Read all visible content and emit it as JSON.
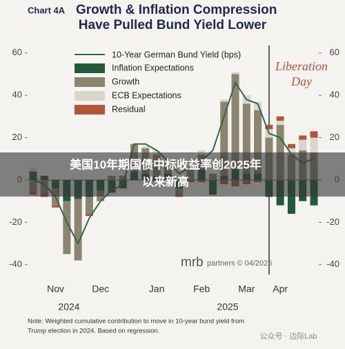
{
  "chart_data": {
    "type": "stacked_bar_line",
    "title_prefix": "Chart 4A",
    "title": [
      "Growth & Inflation Compression",
      "Have Pulled Bund Yield Lower"
    ],
    "categories": [
      null,
      null,
      "Nov",
      null,
      null,
      null,
      "Dec",
      null,
      null,
      null,
      null,
      "Jan",
      null,
      null,
      null,
      "Feb",
      null,
      null,
      null,
      "Mar",
      null,
      null,
      "Apr",
      null,
      null,
      null
    ],
    "year_labels": [
      "2024",
      "2025"
    ],
    "series": [
      {
        "name": "Inflation Expectations",
        "color": "#1f5a3b",
        "values": [
          4,
          2,
          -4,
          -10,
          -9,
          -8,
          -5,
          -6,
          -4,
          4,
          3,
          2,
          3,
          -4,
          0,
          5,
          -7,
          2,
          5,
          3,
          3,
          -8,
          -12,
          -16,
          -10,
          -12
        ]
      },
      {
        "name": "Growth",
        "color": "#8b846f",
        "values": [
          -5,
          -6,
          -8,
          -25,
          -29,
          -8,
          -5,
          2,
          2,
          13,
          12,
          10,
          5,
          -3,
          5,
          7,
          3,
          35,
          45,
          33,
          30,
          20,
          26,
          12,
          14,
          13
        ]
      },
      {
        "name": "ECB Expectations",
        "color": "#d8d5ca",
        "values": [
          2,
          0,
          0,
          0,
          0,
          0,
          0,
          0,
          0,
          0,
          1,
          2,
          0,
          0,
          0,
          2,
          0,
          1,
          1,
          4,
          4,
          4,
          2,
          3,
          5,
          7
        ]
      },
      {
        "name": "Residual",
        "color": "#b4553b",
        "values": [
          -2,
          -2,
          -1,
          0,
          0,
          -1,
          0,
          0,
          0,
          0,
          0,
          -1,
          0,
          -1,
          -1,
          -1,
          0,
          -2,
          -3,
          -2,
          -1,
          2,
          2,
          2,
          2,
          3
        ]
      }
    ],
    "line": {
      "name": "10-Year German Bund Yield (bps)",
      "color": "#2e6b46",
      "values": [
        0,
        -2,
        -8,
        -20,
        -30,
        -18,
        -10,
        -5,
        -2,
        17,
        17,
        14,
        9,
        3,
        6,
        9,
        14,
        30,
        46,
        38,
        36,
        22,
        20,
        12,
        8,
        10
      ]
    },
    "ylim": [
      -44,
      64
    ],
    "yticks": [
      60,
      40,
      20,
      0,
      -20,
      -40
    ],
    "y2lim": [
      -44,
      64
    ],
    "y2ticks": [
      60,
      40,
      20,
      0,
      -20,
      -40
    ],
    "annotation": "Liberation Day",
    "source_brand": "mrb",
    "source": "partners © 04/2025",
    "note": [
      "Note: Weighted cumulative contribution to move in 10-year bund yield from",
      "Trump election in 2024. Based on regression."
    ]
  },
  "overlay": {
    "headline": [
      "美国10年期国债中标收益率创2025年",
      "以来新高"
    ],
    "watermark": "公众号 · 边际Lab"
  }
}
